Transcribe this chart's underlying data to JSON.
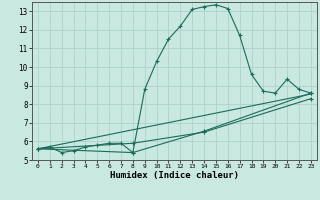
{
  "title": "",
  "xlabel": "Humidex (Indice chaleur)",
  "xlim": [
    -0.5,
    23.5
  ],
  "ylim": [
    5,
    13.5
  ],
  "yticks": [
    5,
    6,
    7,
    8,
    9,
    10,
    11,
    12,
    13
  ],
  "xticks": [
    0,
    1,
    2,
    3,
    4,
    5,
    6,
    7,
    8,
    9,
    10,
    11,
    12,
    13,
    14,
    15,
    16,
    17,
    18,
    19,
    20,
    21,
    22,
    23
  ],
  "bg_color": "#c8e8e0",
  "grid_color": "#b0d0cc",
  "line_color": "#1a6b5a",
  "lines": [
    {
      "x": [
        0,
        1,
        2,
        3,
        4,
        5,
        6,
        7,
        8,
        9,
        10,
        11,
        12,
        13,
        14,
        15,
        16,
        17,
        18,
        19,
        20,
        21,
        22,
        23
      ],
      "y": [
        5.6,
        5.7,
        5.4,
        5.5,
        5.7,
        5.8,
        5.9,
        5.9,
        5.4,
        8.8,
        10.3,
        11.5,
        12.2,
        13.1,
        13.25,
        13.35,
        13.15,
        11.7,
        9.6,
        8.7,
        8.6,
        9.35,
        8.8,
        8.6
      ],
      "marker": true
    },
    {
      "x": [
        0,
        23
      ],
      "y": [
        5.6,
        8.55
      ],
      "marker": false
    },
    {
      "x": [
        0,
        8,
        14,
        23
      ],
      "y": [
        5.6,
        5.9,
        6.5,
        8.3
      ],
      "marker": true
    },
    {
      "x": [
        0,
        8,
        14,
        23
      ],
      "y": [
        5.6,
        5.4,
        6.55,
        8.6
      ],
      "marker": true
    }
  ],
  "figsize": [
    3.2,
    2.0
  ],
  "dpi": 100
}
